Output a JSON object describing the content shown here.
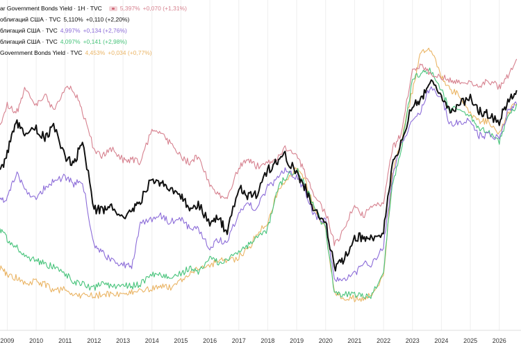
{
  "legend": {
    "main": {
      "name": "ar Government Bonds Yield · 1H · TVC",
      "value": "5,397%",
      "change": "+0,070 (+1,31%)"
    },
    "s2": {
      "name": "облигаций США · TVC",
      "value": "5,110%",
      "change": "+0,110 (+2,20%)"
    },
    "s3": {
      "name": "блигаций США · TVC",
      "value": "4,997%",
      "change": "+0,134 (+2,76%)"
    },
    "s4": {
      "name": "блигаций США · TVC",
      "value": "4,097%",
      "change": "+0,141 (+2,98%)"
    },
    "s5": {
      "name": "Government Bonds Yield · TVC",
      "value": "4,453%",
      "change": "+0,034 (+0,77%)"
    }
  },
  "colors": {
    "pink": "#d6808e",
    "black": "#111111",
    "purple": "#8b6bd8",
    "green": "#46c37a",
    "orange": "#eab464",
    "grid": "#eeeeee"
  },
  "chart_data": {
    "type": "line",
    "x": [
      2008.75,
      2009,
      2009.3,
      2009.6,
      2010,
      2010.3,
      2010.6,
      2011,
      2011.3,
      2011.6,
      2012,
      2012.3,
      2012.6,
      2013,
      2013.3,
      2013.6,
      2014,
      2014.3,
      2014.6,
      2015,
      2015.3,
      2015.6,
      2016,
      2016.3,
      2016.6,
      2017,
      2017.3,
      2017.6,
      2018,
      2018.3,
      2018.6,
      2019,
      2019.3,
      2019.6,
      2020,
      2020.3,
      2020.6,
      2021,
      2021.3,
      2021.6,
      2022,
      2022.3,
      2022.6,
      2023,
      2023.3,
      2023.6,
      2024,
      2024.3,
      2024.6,
      2025,
      2025.3,
      2025.6,
      2026,
      2026.3,
      2026.6
    ],
    "series": [
      {
        "name": "ar Government Bonds Yield · 1H · TVC",
        "color": "#d6808e",
        "values": [
          185,
          150,
          165,
          130,
          150,
          135,
          160,
          125,
          130,
          160,
          215,
          225,
          215,
          230,
          230,
          235,
          185,
          190,
          205,
          225,
          235,
          225,
          265,
          280,
          285,
          240,
          230,
          240,
          235,
          230,
          215,
          225,
          250,
          285,
          305,
          350,
          335,
          295,
          310,
          300,
          290,
          215,
          195,
          100,
          95,
          105,
          110,
          115,
          120,
          120,
          125,
          115,
          125,
          110,
          85
        ]
      },
      {
        "name": "облигаций США · TVC",
        "color": "#111111",
        "values": [
          250,
          220,
          175,
          190,
          185,
          200,
          180,
          225,
          240,
          200,
          300,
          305,
          300,
          310,
          305,
          290,
          255,
          265,
          270,
          280,
          300,
          295,
          320,
          315,
          335,
          270,
          285,
          280,
          245,
          235,
          225,
          250,
          270,
          305,
          320,
          385,
          375,
          345,
          340,
          345,
          335,
          240,
          205,
          150,
          145,
          120,
          135,
          160,
          150,
          140,
          160,
          165,
          175,
          145,
          130
        ]
      },
      {
        "name": "блигаций США · TVC",
        "color": "#8b6bd8",
        "values": [
          290,
          285,
          250,
          270,
          290,
          270,
          260,
          255,
          265,
          260,
          355,
          365,
          375,
          380,
          385,
          320,
          315,
          310,
          320,
          315,
          330,
          330,
          360,
          345,
          350,
          305,
          295,
          300,
          270,
          260,
          245,
          255,
          275,
          310,
          320,
          400,
          405,
          395,
          380,
          380,
          355,
          260,
          210,
          170,
          160,
          125,
          140,
          180,
          175,
          175,
          195,
          195,
          200,
          160,
          150
        ]
      },
      {
        "name": "блигаций США · TVC",
        "color": "#46c37a",
        "values": [
          330,
          345,
          355,
          370,
          375,
          380,
          385,
          395,
          405,
          410,
          415,
          405,
          412,
          410,
          412,
          410,
          395,
          395,
          400,
          395,
          385,
          395,
          370,
          380,
          375,
          365,
          355,
          345,
          330,
          275,
          255,
          245,
          265,
          300,
          330,
          422,
          425,
          425,
          428,
          425,
          390,
          265,
          220,
          115,
          105,
          100,
          130,
          160,
          155,
          170,
          185,
          190,
          205,
          170,
          150
        ]
      },
      {
        "name": "Government Bonds Yield · TVC",
        "color": "#eab464",
        "values": [
          385,
          395,
          400,
          410,
          405,
          410,
          420,
          415,
          425,
          425,
          425,
          425,
          424,
          423,
          420,
          418,
          415,
          413,
          415,
          405,
          395,
          388,
          385,
          375,
          378,
          370,
          360,
          340,
          320,
          280,
          265,
          240,
          262,
          300,
          330,
          422,
          428,
          430,
          430,
          425,
          400,
          250,
          205,
          130,
          75,
          70,
          110,
          130,
          135,
          165,
          175,
          175,
          195,
          160,
          150
        ]
      }
    ],
    "x_ticks": [
      "2009",
      "2010",
      "2011",
      "2012",
      "2013",
      "2014",
      "2015",
      "2016",
      "2017",
      "2018",
      "2019",
      "2020",
      "2021",
      "2022",
      "2023",
      "2024",
      "2025",
      "2026"
    ],
    "xlim": [
      2008.75,
      2026.75
    ]
  }
}
